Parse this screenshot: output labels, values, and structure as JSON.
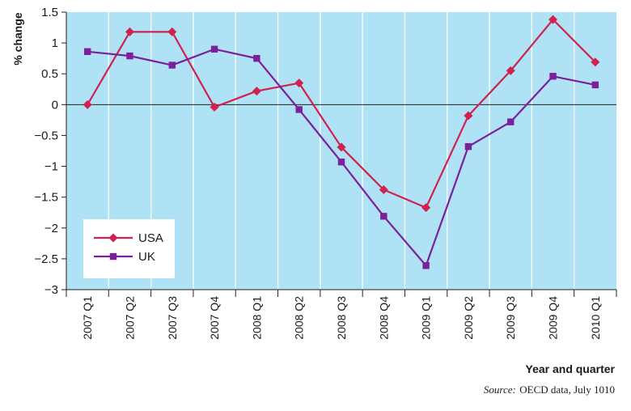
{
  "chart_data": {
    "type": "line",
    "title": "",
    "xlabel": "Year and quarter",
    "ylabel": "% change",
    "categories": [
      "2007 Q1",
      "2007 Q2",
      "2007 Q3",
      "2007 Q4",
      "2008 Q1",
      "2008 Q2",
      "2008 Q3",
      "2008 Q4",
      "2009 Q1",
      "2009 Q2",
      "2009 Q3",
      "2009 Q4",
      "2010 Q1"
    ],
    "ylim": [
      -3,
      1.5
    ],
    "yticks": [
      1.5,
      1,
      0.5,
      0,
      -0.5,
      -1,
      -1.5,
      -2,
      -2.5,
      -3
    ],
    "ytick_labels": [
      "1.5",
      "1",
      "0.5",
      "0",
      "−0.5",
      "−1",
      "−1.5",
      "−2",
      "−2.5",
      "−3"
    ],
    "grid": "vertical",
    "legend_position": "bottom-left",
    "background_color": "#aee2f4",
    "series": [
      {
        "name": "USA",
        "color": "#d0214f",
        "marker": "diamond",
        "values": [
          0,
          1.18,
          1.18,
          -0.04,
          0.22,
          0.35,
          -0.69,
          -1.38,
          -1.67,
          -0.18,
          0.55,
          1.38,
          0.69
        ]
      },
      {
        "name": "UK",
        "color": "#7b1f9a",
        "marker": "square",
        "values": [
          0.86,
          0.79,
          0.64,
          0.9,
          0.75,
          -0.08,
          -0.93,
          -1.81,
          -2.61,
          -0.68,
          -0.28,
          0.46,
          0.32
        ]
      }
    ]
  },
  "source": {
    "label": "Source:",
    "text": "OECD data, July 1010"
  }
}
